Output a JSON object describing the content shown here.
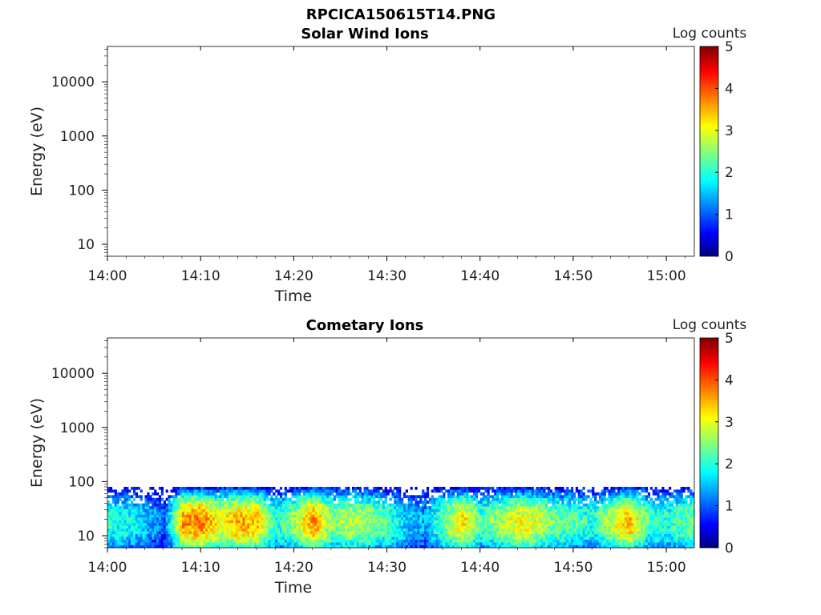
{
  "figure_title": "RPCICA150615T14.PNG",
  "chart_data": [
    {
      "type": "heatmap",
      "title": "Solar Wind Ions",
      "xlabel": "Time",
      "ylabel": "Energy (eV)",
      "y_scale": "log",
      "x_ticks": [
        "14:00",
        "14:10",
        "14:20",
        "14:30",
        "14:40",
        "14:50",
        "15:00"
      ],
      "xlim": [
        "14:00",
        "15:03"
      ],
      "y_ticks": [
        "10",
        "100",
        "1000",
        "10000"
      ],
      "ylim": [
        6,
        45000
      ],
      "colorbar": {
        "label": "Log counts",
        "ticks": [
          "0",
          "1",
          "2",
          "3",
          "4",
          "5"
        ],
        "range": [
          0,
          5
        ],
        "colormap": "jet",
        "colors": [
          "#00007f",
          "#0000ff",
          "#00ffff",
          "#ffff00",
          "#ff0000",
          "#7f0000"
        ]
      },
      "data": "empty"
    },
    {
      "type": "heatmap",
      "title": "Cometary Ions",
      "xlabel": "Time",
      "ylabel": "Energy (eV)",
      "y_scale": "log",
      "x_ticks": [
        "14:00",
        "14:10",
        "14:20",
        "14:30",
        "14:40",
        "14:50",
        "15:00"
      ],
      "xlim": [
        "14:00",
        "15:03"
      ],
      "y_ticks": [
        "10",
        "100",
        "1000",
        "10000"
      ],
      "ylim": [
        6,
        45000
      ],
      "colorbar": {
        "label": "Log counts",
        "ticks": [
          "0",
          "1",
          "2",
          "3",
          "4",
          "5"
        ],
        "range": [
          0,
          5
        ],
        "colormap": "jet",
        "colors": [
          "#00007f",
          "#0000ff",
          "#00ffff",
          "#ffff00",
          "#ff0000",
          "#7f0000"
        ]
      },
      "data_energy_range": [
        6,
        80
      ],
      "time_profile": [
        {
          "t": "14:00",
          "peak": 2.0
        },
        {
          "t": "14:03",
          "peak": 1.8
        },
        {
          "t": "14:06",
          "peak": 1.0
        },
        {
          "t": "14:08",
          "peak": 3.6
        },
        {
          "t": "14:10",
          "peak": 3.8
        },
        {
          "t": "14:12",
          "peak": 3.0
        },
        {
          "t": "14:14",
          "peak": 3.6
        },
        {
          "t": "14:16",
          "peak": 3.4
        },
        {
          "t": "14:18",
          "peak": 2.0
        },
        {
          "t": "14:20",
          "peak": 2.6
        },
        {
          "t": "14:22",
          "peak": 3.7
        },
        {
          "t": "14:24",
          "peak": 2.5
        },
        {
          "t": "14:26",
          "peak": 2.8
        },
        {
          "t": "14:28",
          "peak": 2.6
        },
        {
          "t": "14:30",
          "peak": 2.2
        },
        {
          "t": "14:32",
          "peak": 1.6
        },
        {
          "t": "14:34",
          "peak": 1.4
        },
        {
          "t": "14:36",
          "peak": 2.4
        },
        {
          "t": "14:38",
          "peak": 3.3
        },
        {
          "t": "14:40",
          "peak": 2.2
        },
        {
          "t": "14:42",
          "peak": 2.6
        },
        {
          "t": "14:44",
          "peak": 3.2
        },
        {
          "t": "14:46",
          "peak": 2.9
        },
        {
          "t": "14:48",
          "peak": 2.4
        },
        {
          "t": "14:50",
          "peak": 2.2
        },
        {
          "t": "14:52",
          "peak": 2.0
        },
        {
          "t": "14:54",
          "peak": 2.8
        },
        {
          "t": "14:56",
          "peak": 3.5
        },
        {
          "t": "14:58",
          "peak": 2.2
        },
        {
          "t": "15:00",
          "peak": 2.0
        },
        {
          "t": "15:02",
          "peak": 2.4
        }
      ]
    }
  ]
}
